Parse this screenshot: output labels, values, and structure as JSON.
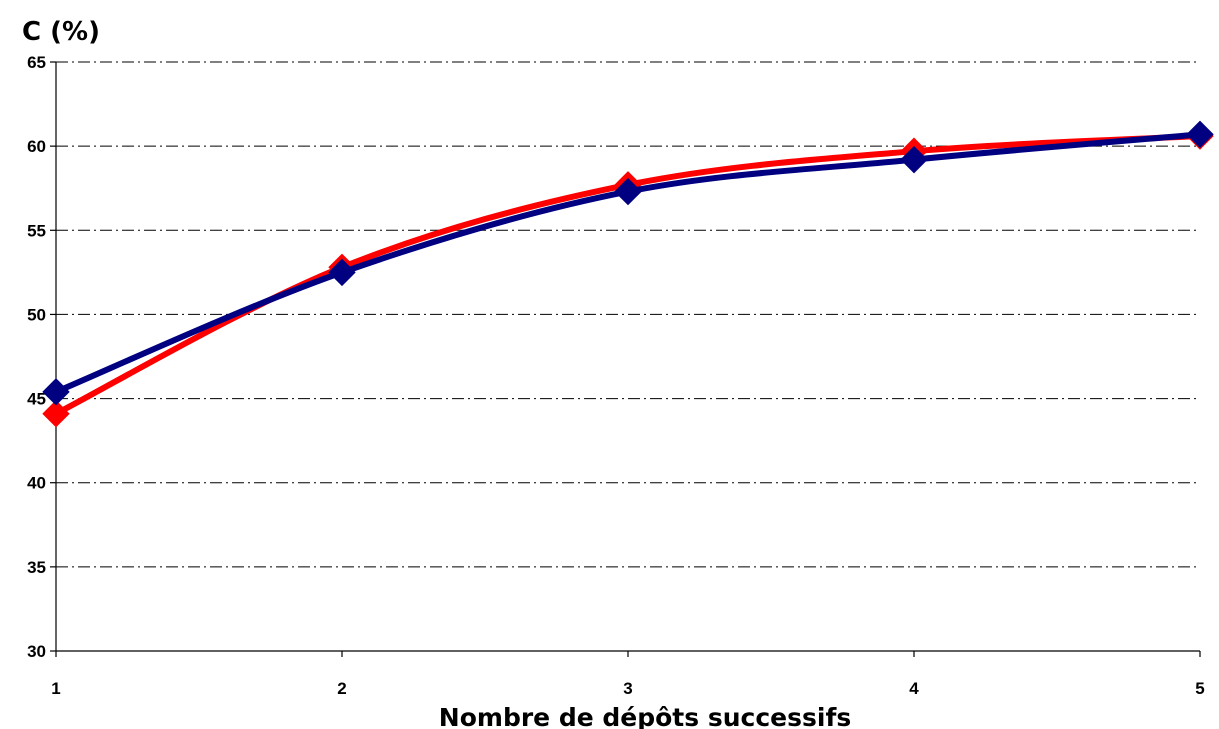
{
  "chart_data": {
    "type": "line",
    "title": "",
    "xlabel": "Nombre de dépôts successifs",
    "ylabel": "C (%)",
    "x": [
      1,
      2,
      3,
      4,
      5
    ],
    "xticks": [
      "1",
      "2",
      "3",
      "4",
      "5"
    ],
    "yticks": [
      "30",
      "35",
      "40",
      "45",
      "50",
      "55",
      "60",
      "65"
    ],
    "ylim": [
      30,
      65
    ],
    "xlim": [
      1,
      5
    ],
    "grid": true,
    "smooth": true,
    "series": [
      {
        "values": [
          44.1,
          52.8,
          57.7,
          59.7,
          60.6
        ],
        "color": "#ff0000",
        "marker": "diamond"
      },
      {
        "values": [
          45.4,
          52.5,
          57.3,
          59.2,
          60.7
        ],
        "color": "#000080",
        "marker": "diamond"
      }
    ]
  }
}
